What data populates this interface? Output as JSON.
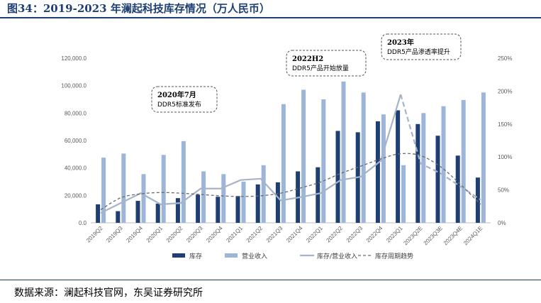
{
  "title": "图34：2019-2023 年澜起科技库存情况（万人民币）",
  "source": "数据来源：澜起科技官网，东吴证券研究所",
  "colors": {
    "inventory": "#1f3f73",
    "revenue": "#9db5d9",
    "ratio": "#a6b4c8",
    "trend": "#6b6b6b",
    "frame": "#1f3f73"
  },
  "chart_data": {
    "type": "bar",
    "categories": [
      "2019Q2",
      "2019Q3",
      "2019Q4",
      "2020Q1",
      "2020Q2",
      "2020Q3",
      "2020Q4",
      "2021Q1",
      "2021Q2",
      "2021Q3",
      "2021Q4",
      "2022Q1",
      "2022Q2",
      "2022Q3",
      "2022Q4",
      "2023Q1",
      "2023Q2E",
      "2023Q3E",
      "2023Q4E",
      "2024Q1E"
    ],
    "series": [
      {
        "name": "库存",
        "type": "bar",
        "axis": "left",
        "values": [
          13500,
          8500,
          16000,
          14000,
          18000,
          20500,
          19000,
          19500,
          28000,
          29500,
          37500,
          40500,
          67000,
          66000,
          74000,
          82000,
          72000,
          63500,
          49000,
          33000
        ]
      },
      {
        "name": "营业收入",
        "type": "bar",
        "axis": "left",
        "values": [
          47500,
          50500,
          35500,
          49500,
          59500,
          37500,
          35500,
          30000,
          42000,
          86500,
          97000,
          90000,
          103000,
          95000,
          79000,
          42000,
          80000,
          85000,
          89500,
          95000
        ]
      },
      {
        "name": "库存/营业收入",
        "type": "line",
        "axis": "right",
        "values": [
          0.15,
          0.3,
          0.45,
          0.28,
          0.3,
          0.52,
          0.52,
          0.65,
          0.67,
          0.34,
          0.39,
          0.45,
          0.65,
          0.7,
          0.94,
          1.95,
          0.9,
          0.75,
          0.55,
          0.35
        ]
      },
      {
        "name": "库存周期趋势",
        "type": "line-dashed",
        "axis": "right",
        "values": [
          0.2,
          0.38,
          0.44,
          0.46,
          0.45,
          0.43,
          0.41,
          0.4,
          0.41,
          0.45,
          0.53,
          0.62,
          0.75,
          0.86,
          0.97,
          1.05,
          1.02,
          0.85,
          0.58,
          0.28
        ]
      }
    ],
    "y_left": {
      "min": 0,
      "max": 120000,
      "ticks": [
        "0.0",
        "20,000.0",
        "40,000.0",
        "60,000.0",
        "80,000.0",
        "100,000.0",
        "120,000.0"
      ]
    },
    "y_right": {
      "min": 0,
      "max": 2.5,
      "ticks": [
        "0%",
        "50%",
        "100%",
        "150%",
        "200%",
        "250%"
      ]
    },
    "legend_position": "bottom",
    "grid": false,
    "annotations": [
      {
        "bold": "2020年7月",
        "text": "DDR5标准发布"
      },
      {
        "bold": "2022H2",
        "text": "DDR5产品开始放量"
      },
      {
        "bold": "2023年",
        "text": "DDR5产品渗透率提升"
      }
    ]
  }
}
